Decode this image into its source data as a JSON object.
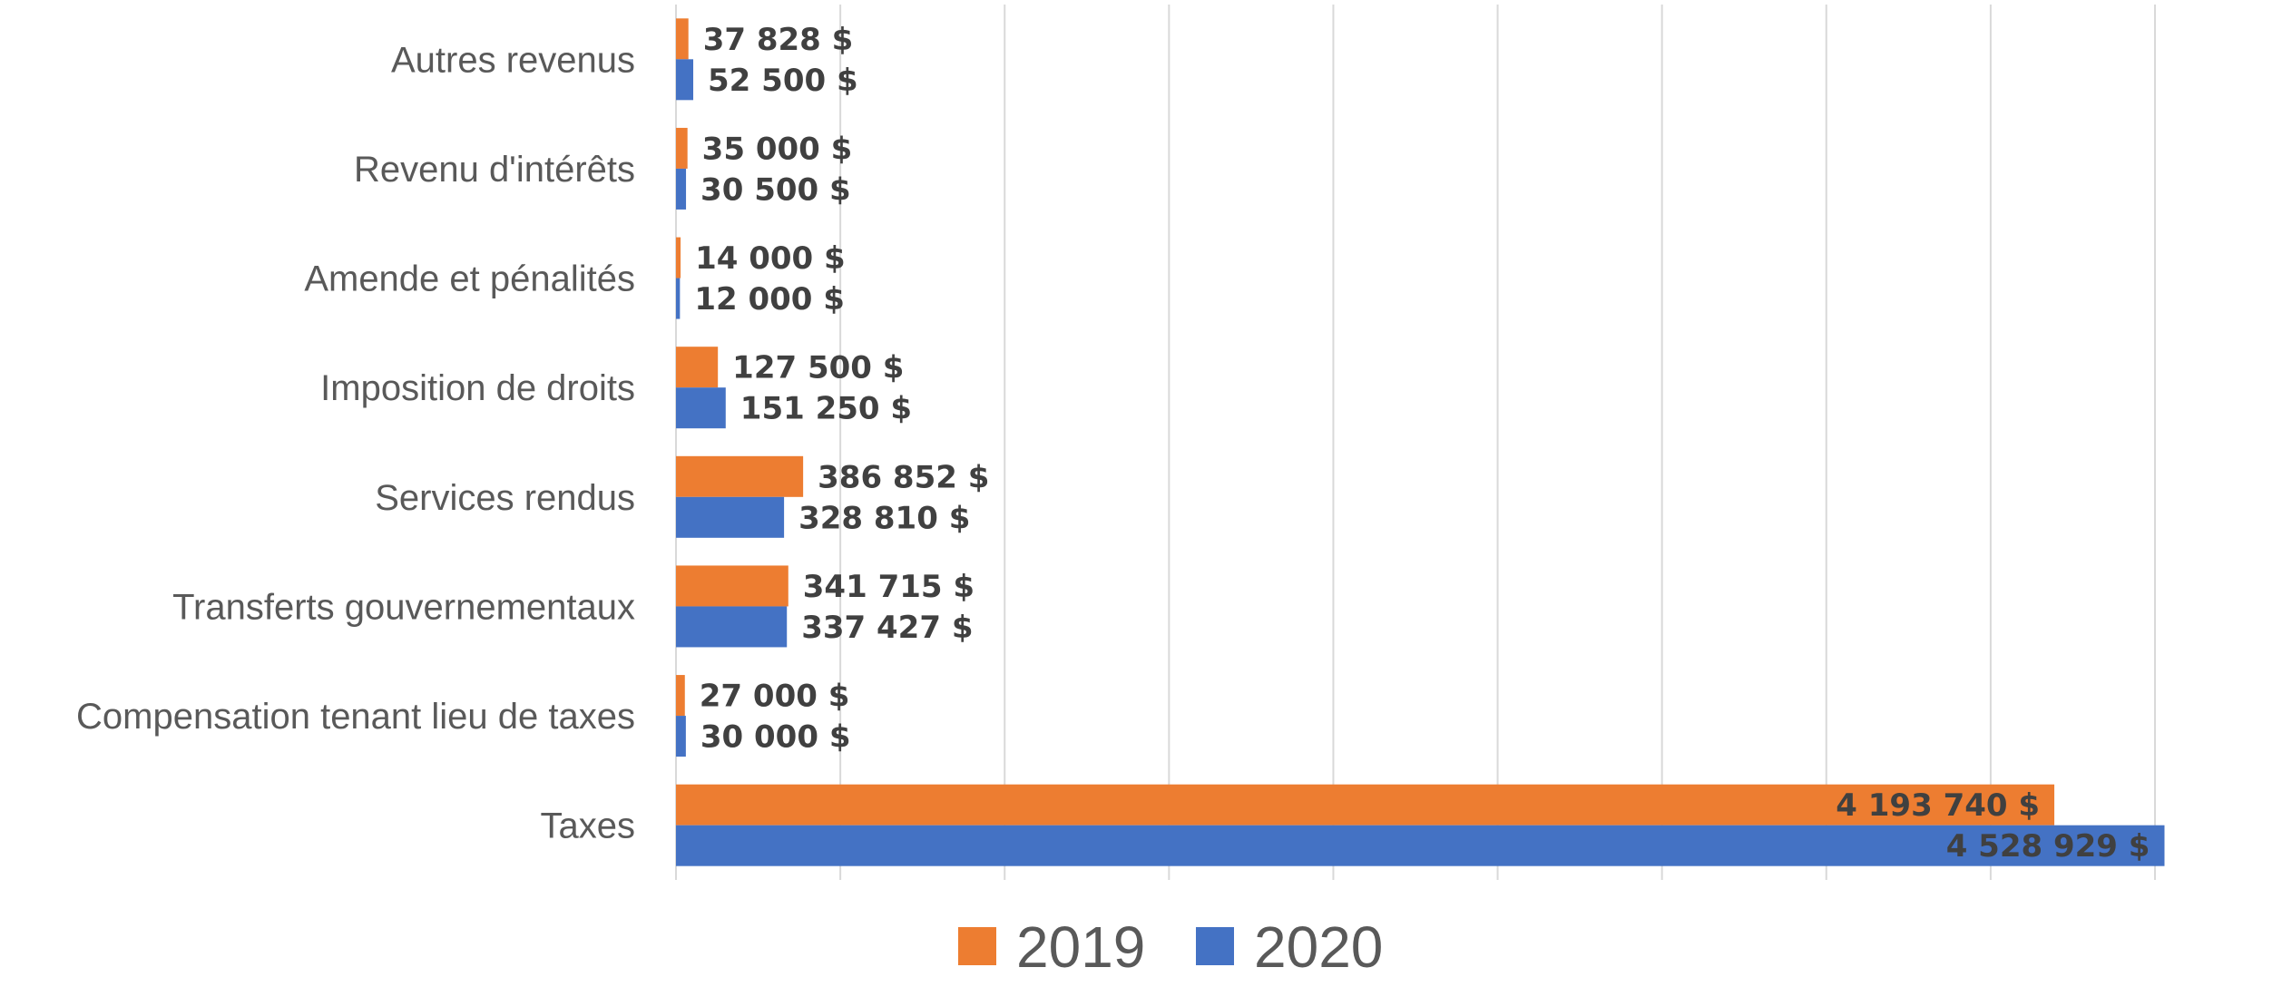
{
  "chart_data": {
    "type": "bar",
    "orientation": "horizontal",
    "title": "",
    "xlabel": "",
    "ylabel": "",
    "categories": [
      "Autres revenus",
      "Revenu d'intérêts",
      "Amende et pénalités",
      "Imposition de droits",
      "Services rendus",
      "Transferts gouvernementaux",
      "Compensation tenant lieu de taxes",
      "Taxes"
    ],
    "series": [
      {
        "name": "2019",
        "color": "#ED7D31",
        "values": [
          37828,
          35000,
          14000,
          127500,
          386852,
          341715,
          27000,
          4193740
        ],
        "labels": [
          "37 828 $",
          "35 000 $",
          "14 000 $",
          "127 500 $",
          "386 852 $",
          "341 715 $",
          "27 000 $",
          "4 193 740 $"
        ]
      },
      {
        "name": "2020",
        "color": "#4472C4",
        "values": [
          52500,
          30500,
          12000,
          151250,
          328810,
          337427,
          30000,
          4528929
        ],
        "labels": [
          "52 500 $",
          "30 500 $",
          "12 000 $",
          "151 250 $",
          "328 810 $",
          "337 427 $",
          "30 000 $",
          "4 528 929 $"
        ]
      }
    ],
    "xlim": [
      0,
      4500000
    ],
    "x_gridline_step": 500000,
    "x_tick_labels_visible": false,
    "grid": true,
    "legend": "bottom"
  }
}
